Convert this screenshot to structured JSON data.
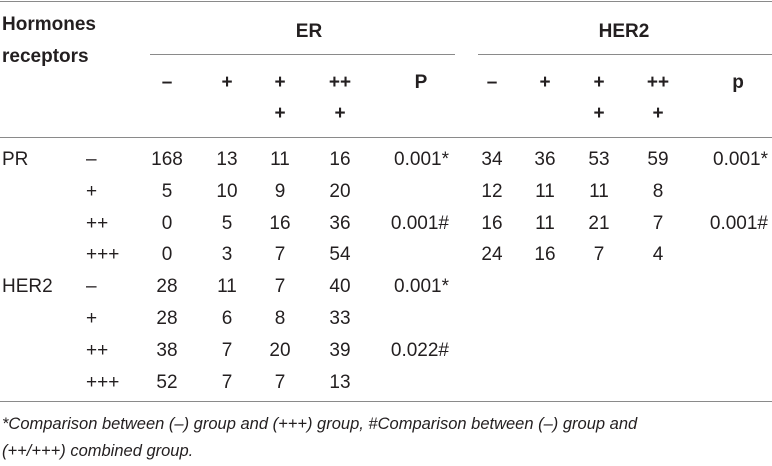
{
  "header": {
    "row_label_line1": "Hormones",
    "row_label_line2": "receptors",
    "group_er": "ER",
    "group_her2": "HER2",
    "er_cols": [
      [
        "–"
      ],
      [
        "+"
      ],
      [
        "+",
        "+"
      ],
      [
        "++",
        "+"
      ],
      [
        "P"
      ]
    ],
    "her2_cols": [
      [
        "–"
      ],
      [
        "+"
      ],
      [
        "+",
        "+"
      ],
      [
        "++",
        "+"
      ],
      [
        "p"
      ]
    ]
  },
  "rows": [
    {
      "group": "PR",
      "level": "–",
      "er": [
        "168",
        "13",
        "11",
        "16"
      ],
      "er_p": "0.001*",
      "her2": [
        "34",
        "36",
        "53",
        "59"
      ],
      "her2_p": "0.001*"
    },
    {
      "group": "",
      "level": "+",
      "er": [
        "5",
        "10",
        "9",
        "20"
      ],
      "er_p": "",
      "her2": [
        "12",
        "11",
        "11",
        "8"
      ],
      "her2_p": ""
    },
    {
      "group": "",
      "level": "++",
      "er": [
        "0",
        "5",
        "16",
        "36"
      ],
      "er_p": "0.001#",
      "her2": [
        "16",
        "11",
        "21",
        "7"
      ],
      "her2_p": "0.001#"
    },
    {
      "group": "",
      "level": "+++",
      "er": [
        "0",
        "3",
        "7",
        "54"
      ],
      "er_p": "",
      "her2": [
        "24",
        "16",
        "7",
        "4"
      ],
      "her2_p": ""
    },
    {
      "group": "HER2",
      "level": "–",
      "er": [
        "28",
        "11",
        "7",
        "40"
      ],
      "er_p": "0.001*",
      "her2": [
        "",
        "",
        "",
        ""
      ],
      "her2_p": ""
    },
    {
      "group": "",
      "level": "+",
      "er": [
        "28",
        "6",
        "8",
        "33"
      ],
      "er_p": "",
      "her2": [
        "",
        "",
        "",
        ""
      ],
      "her2_p": ""
    },
    {
      "group": "",
      "level": "++",
      "er": [
        "38",
        "7",
        "20",
        "39"
      ],
      "er_p": "0.022#",
      "her2": [
        "",
        "",
        "",
        ""
      ],
      "her2_p": ""
    },
    {
      "group": "",
      "level": "+++",
      "er": [
        "52",
        "7",
        "7",
        "13"
      ],
      "er_p": "",
      "her2": [
        "",
        "",
        "",
        ""
      ],
      "her2_p": ""
    }
  ],
  "footnote_line1": "*Comparison between (–) group and (+++) group, #Comparison between (–) group and",
  "footnote_line2": "(++/+++) combined group."
}
